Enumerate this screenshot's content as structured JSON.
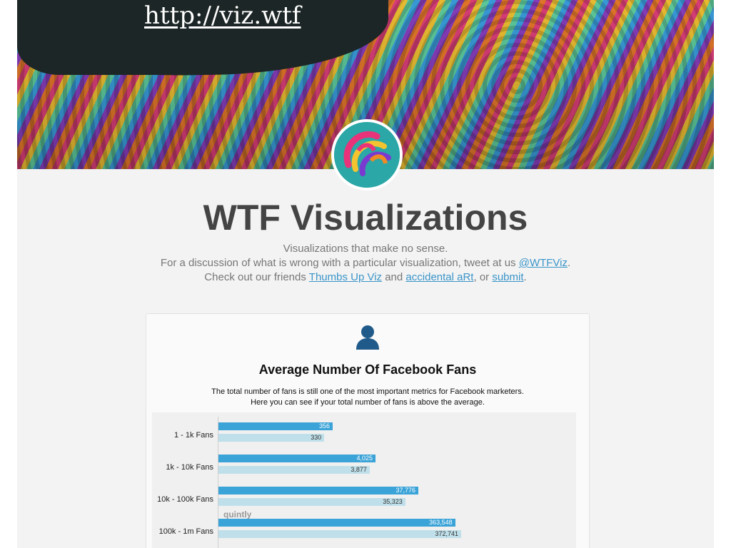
{
  "banner": {
    "url": "http://viz.wtf"
  },
  "header": {
    "title": "WTF Visualizations",
    "line1": "Visualizations that make no sense.",
    "line2_prefix": "For a discussion of what is wrong with a particular visualization, tweet at us ",
    "line2_link": "@WTFViz",
    "line2_suffix": ".",
    "line3_prefix": "Check out our friends ",
    "line3_link1": "Thumbs Up Viz",
    "line3_and": " and ",
    "line3_link2": "accidental aRt",
    "line3_or": ", or ",
    "line3_link3": "submit",
    "line3_suffix": "."
  },
  "icons": {
    "avatar": "colorful-3d-logo-icon",
    "user": "user-silhouette-icon"
  },
  "colors": {
    "accent_link": "#3a95c9",
    "bar_primary": "#3aa3d8",
    "bar_secondary": "#bfe0ea",
    "title_text": "#444444"
  },
  "post": {
    "chart_title": "Average Number Of Facebook Fans",
    "chart_sub1": "The total number of fans is still one of the most important metrics for Facebook marketers.",
    "chart_sub2": "Here you can see if your total number of fans is above the average.",
    "watermark": "quintly"
  },
  "chart_data": {
    "type": "bar",
    "orientation": "horizontal",
    "title": "Average Number Of Facebook Fans",
    "categories": [
      "1 - 1k Fans",
      "1k - 10k Fans",
      "10k - 100k Fans",
      "100k - 1m Fans"
    ],
    "series": [
      {
        "values": [
          356,
          4025,
          37776,
          363548
        ],
        "value_labels": [
          "356",
          "4,025",
          "37,776",
          "363,548"
        ]
      },
      {
        "values": [
          330,
          3877,
          35323,
          372741
        ],
        "value_labels": [
          "330",
          "3,877",
          "35,323",
          "372,741"
        ]
      }
    ],
    "grid": false,
    "legend": "none"
  }
}
